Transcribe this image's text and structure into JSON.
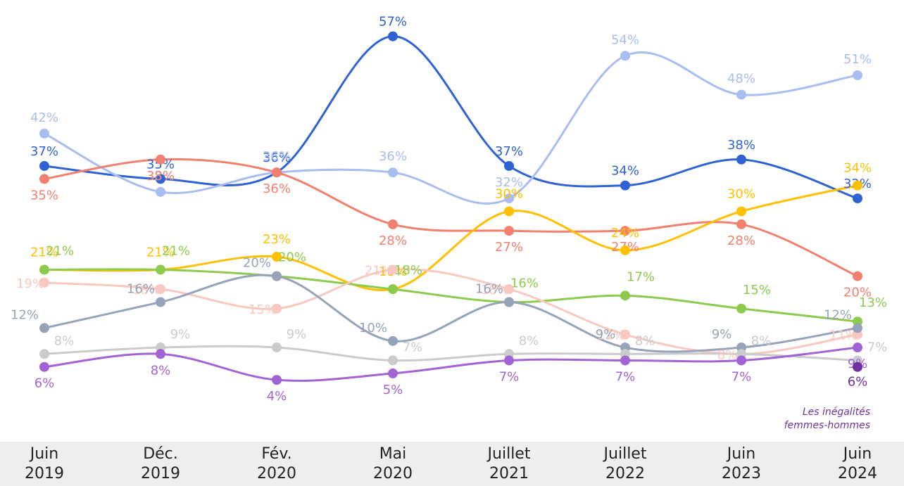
{
  "chart_data": {
    "type": "line",
    "categories": [
      "Juin 2019",
      "Déc. 2019",
      "Fév. 2020",
      "Mai 2020",
      "Juillet 2021",
      "Juillet 2022",
      "Juin 2023",
      "Juin 2024"
    ],
    "ylim": [
      0,
      60
    ],
    "series": [
      {
        "color": "#2f62d2",
        "values": [
          37,
          35,
          36,
          57,
          37,
          34,
          38,
          32
        ]
      },
      {
        "color": "#a9bdf0",
        "values": [
          42,
          33,
          36,
          36,
          32,
          54,
          48,
          51
        ]
      },
      {
        "color": "#f2806f",
        "values": [
          35,
          38,
          36,
          28,
          27,
          27,
          28,
          20
        ]
      },
      {
        "color": "#ffc000",
        "values": [
          21,
          21,
          23,
          18,
          30,
          24,
          30,
          34
        ]
      },
      {
        "color": "#8dcb4e",
        "values": [
          21,
          21,
          20,
          18,
          16,
          17,
          15,
          13
        ]
      },
      {
        "color": "#f9c9c1",
        "values": [
          19,
          18,
          15,
          21,
          18,
          11,
          8,
          11
        ]
      },
      {
        "color": "#96a3b8",
        "values": [
          12,
          16,
          20,
          10,
          16,
          9,
          9,
          12
        ]
      },
      {
        "color": "#cbcbcb",
        "values": [
          8,
          9,
          9,
          7,
          8,
          8,
          8,
          7
        ]
      },
      {
        "color": "#a264d4",
        "values": [
          6,
          8,
          4,
          5,
          7,
          7,
          7,
          9
        ]
      },
      {
        "name": "Les inégalités femmes-hommes",
        "color": "#7030a0",
        "values": [
          null,
          null,
          null,
          null,
          null,
          null,
          null,
          6
        ]
      }
    ],
    "value_labels": [
      [
        "37%",
        "35%",
        "36%",
        "57%",
        "37%",
        "34%",
        "38%",
        "32%"
      ],
      [
        "42%",
        "33%",
        "36%",
        "36%",
        "32%",
        "54%",
        "48%",
        "51%"
      ],
      [
        "35%",
        "38%",
        "36%",
        "28%",
        "27%",
        "27%",
        "28%",
        "20%"
      ],
      [
        "21%",
        "21%",
        "23%",
        "18%",
        "30%",
        "24%",
        "30%",
        "34%"
      ],
      [
        "21%",
        "21%",
        "20%",
        "18%",
        "16%",
        "17%",
        "15%",
        "13%"
      ],
      [
        "19%",
        "18%",
        "15%",
        "21%",
        "18%",
        "11%",
        "8%",
        "11%"
      ],
      [
        "12%",
        "16%",
        "20%",
        "10%",
        "16%",
        "9%",
        "9%",
        "12%"
      ],
      [
        "8%",
        "9%",
        "9%",
        "7%",
        "8%",
        "8%",
        "8%",
        "7%"
      ],
      [
        "6%",
        "8%",
        "4%",
        "5%",
        "7%",
        "7%",
        "7%",
        "9%"
      ],
      [
        null,
        null,
        null,
        null,
        null,
        null,
        null,
        "6%"
      ]
    ]
  }
}
